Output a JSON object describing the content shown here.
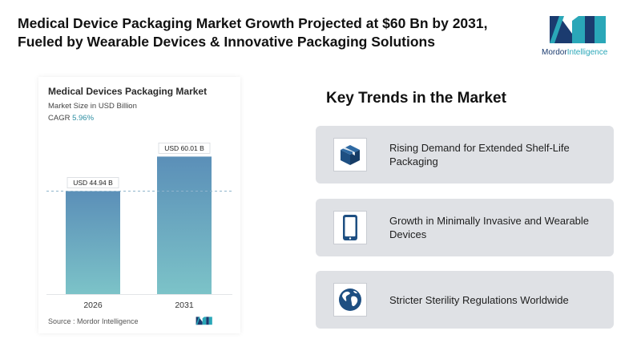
{
  "header": {
    "title": "Medical Device Packaging Market Growth Projected at $60 Bn by 2031, Fueled by Wearable Devices & Innovative Packaging Solutions"
  },
  "logo": {
    "text_part1": "Mordor",
    "text_part2": "Intelligence",
    "colors": {
      "dark": "#1b3b6f",
      "light": "#2aa7b8"
    }
  },
  "chart_card": {
    "title": "Medical Devices Packaging Market",
    "subtitle": "Market Size in USD Billion",
    "cagr_label": "CAGR",
    "cagr_value": "5.96%",
    "source": "Source :  Mordor Intelligence"
  },
  "chart_data": {
    "type": "bar",
    "categories": [
      "2026",
      "2031"
    ],
    "values": [
      44.94,
      60.01
    ],
    "data_labels": [
      "USD 44.94 B",
      "USD 60.01 B"
    ],
    "ylim": [
      0,
      64
    ],
    "grid": false,
    "reference_line": "dashed line at the 2026 value",
    "colors": {
      "bar_top": "#5b8fb8",
      "bar_bottom": "#7cc3c8",
      "reference": "#8fb4cc"
    }
  },
  "trends": {
    "title": "Key Trends in the Market",
    "items": [
      {
        "label": "Rising Demand for Extended Shelf-Life Packaging",
        "icon": "package-box-icon"
      },
      {
        "label": "Growth in Minimally Invasive and Wearable Devices",
        "icon": "mobile-device-icon"
      },
      {
        "label": "Stricter Sterility Regulations Worldwide",
        "icon": "globe-icon"
      }
    ],
    "icon_color": "#1e4f82",
    "card_color": "#dfe1e5"
  }
}
